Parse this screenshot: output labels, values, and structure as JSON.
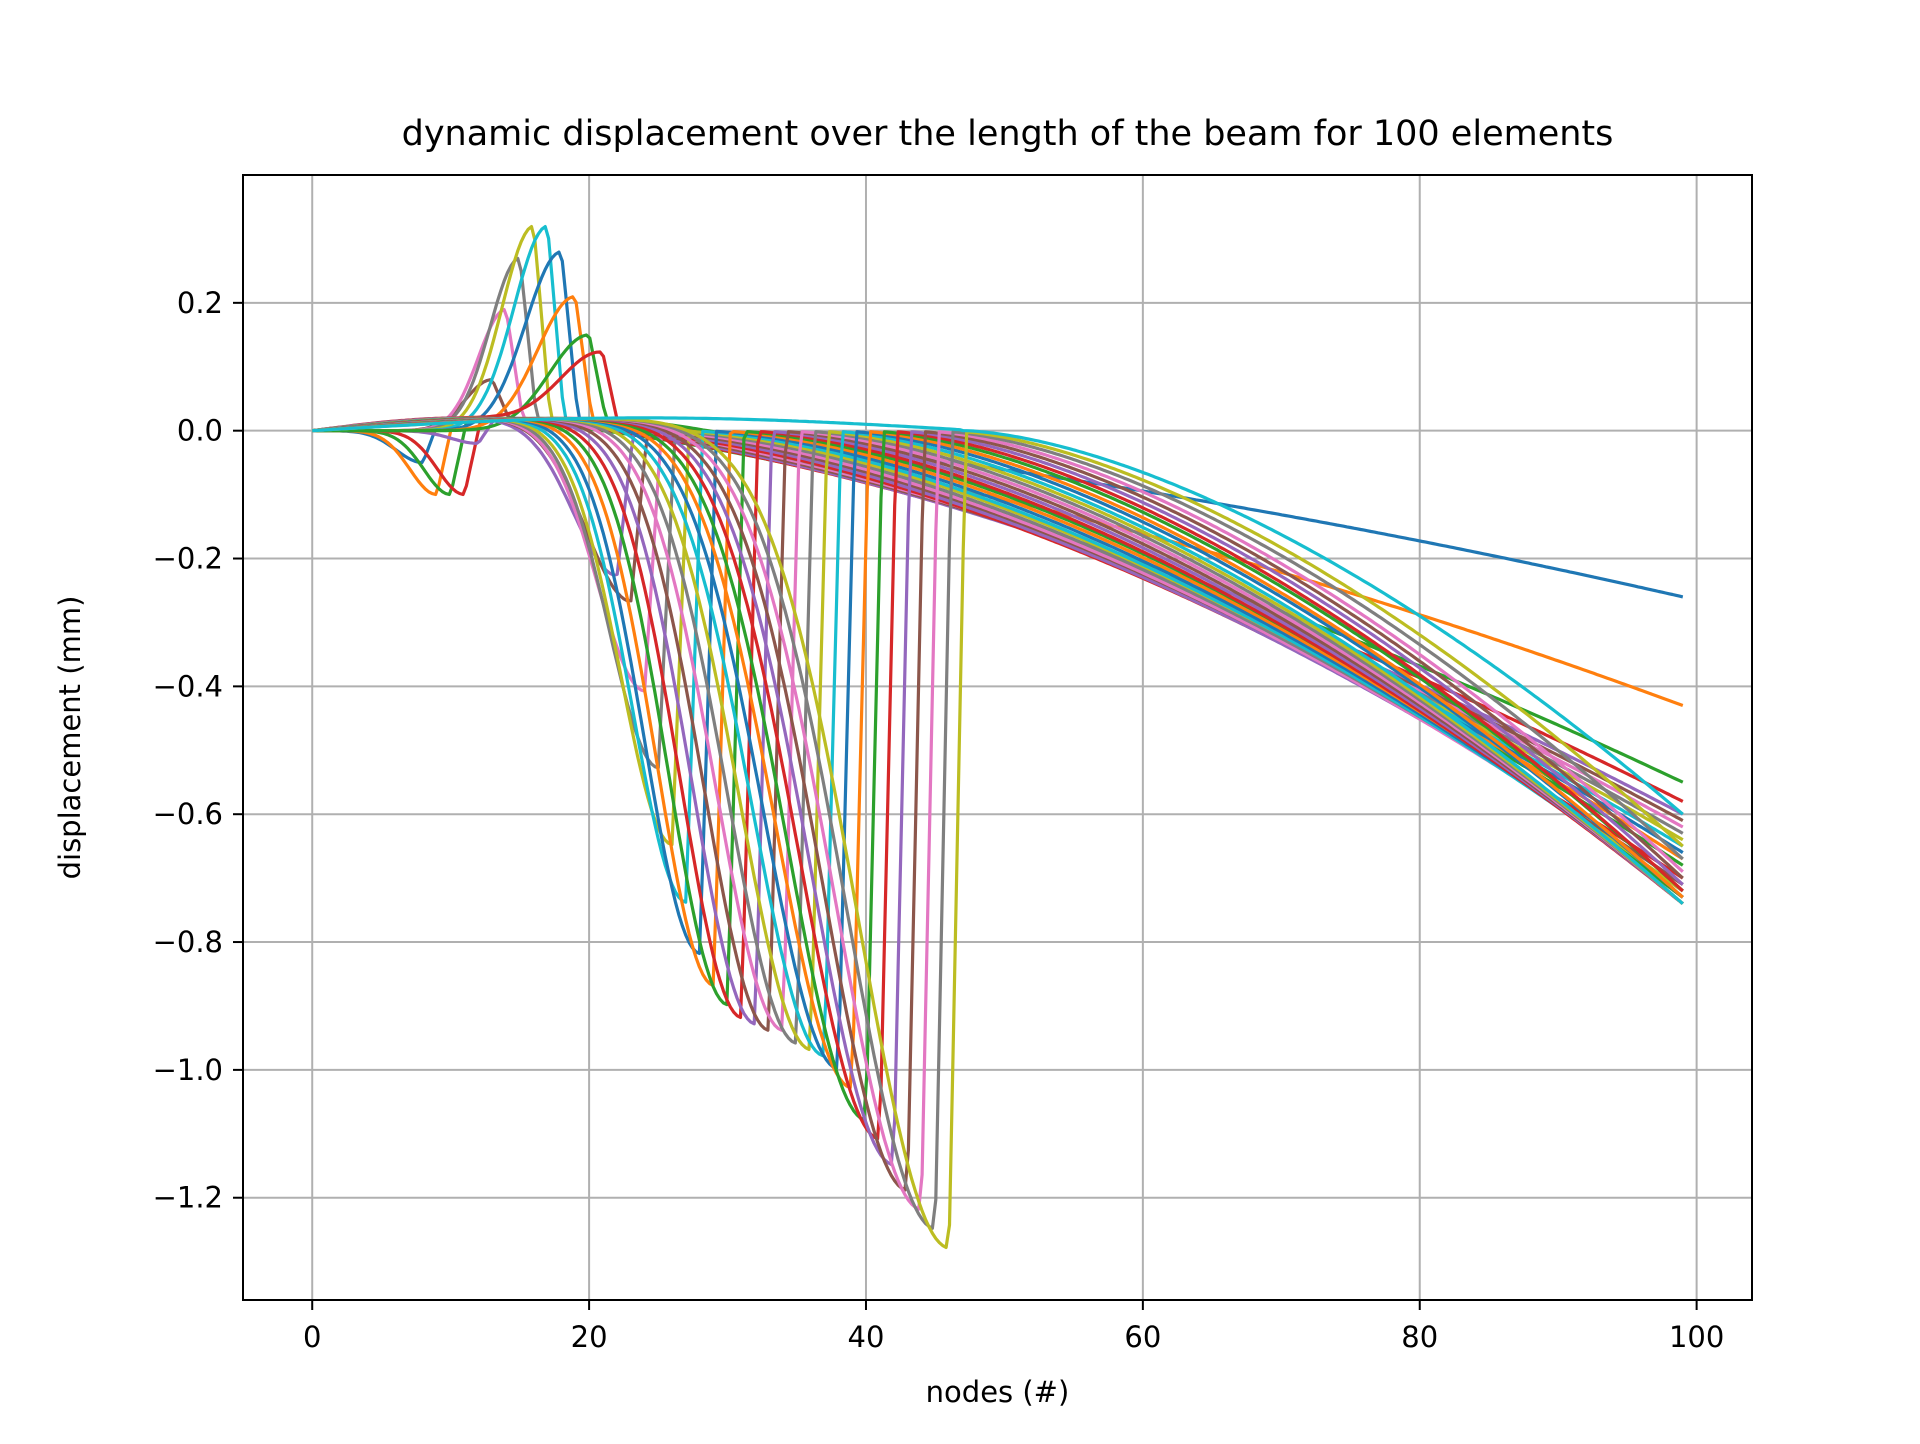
{
  "chart_data": {
    "type": "line",
    "title": "dynamic displacement over the length of the beam  for 100 elements",
    "xlabel": "nodes (#)",
    "ylabel": "displacement (mm)",
    "xlim": [
      -5,
      104
    ],
    "ylim": [
      -1.36,
      0.4
    ],
    "x_ticks": [
      0,
      20,
      40,
      60,
      80,
      100
    ],
    "y_ticks": [
      0.2,
      0.0,
      -0.2,
      -0.4,
      -0.6,
      -0.8,
      -1.0,
      -1.2
    ],
    "x_tick_labels": [
      "0",
      "20",
      "40",
      "60",
      "80",
      "100"
    ],
    "y_tick_labels": [
      "0.2",
      "0.0",
      "−0.2",
      "−0.4",
      "−0.6",
      "−0.8",
      "−1.0",
      "−1.2"
    ],
    "grid": true,
    "legend": "none",
    "colors": [
      "#1f77b4",
      "#ff7f0e",
      "#2ca02c",
      "#d62728",
      "#9467bd",
      "#8c564b",
      "#e377c2",
      "#7f7f7f",
      "#bcbd22",
      "#17becf"
    ],
    "x_range": [
      0,
      99
    ],
    "series_note_values": {
      "load_positions": [
        8,
        9,
        10,
        11,
        12,
        13,
        14,
        15,
        16,
        17,
        18,
        19,
        20,
        21,
        22,
        23,
        24,
        25,
        26,
        27,
        28,
        29,
        30,
        31,
        32,
        33,
        34,
        35,
        36,
        37,
        38,
        39,
        40,
        41,
        42,
        43,
        44,
        45,
        46,
        47
      ],
      "peak_values": [
        -0.05,
        -0.1,
        -0.1,
        -0.1,
        -0.02,
        0.08,
        0.19,
        0.27,
        0.32,
        0.32,
        0.28,
        0.21,
        0.15,
        0.12,
        -0.23,
        -0.27,
        -0.41,
        -0.53,
        -0.65,
        -0.74,
        -0.82,
        -0.87,
        -0.9,
        -0.92,
        -0.93,
        -0.94,
        -0.94,
        -0.96,
        -0.97,
        -0.98,
        -1.0,
        -1.03,
        -1.08,
        -1.11,
        -1.15,
        -1.19,
        -1.22,
        -1.25,
        -1.28,
        0.0
      ],
      "end_values": [
        -0.28,
        -0.45,
        -0.57,
        -0.6,
        -0.62,
        -0.63,
        -0.64,
        -0.65,
        -0.66,
        -0.67,
        -0.68,
        -0.69,
        -0.7,
        -0.7,
        -0.71,
        -0.71,
        -0.72,
        -0.72,
        -0.72,
        -0.73,
        -0.73,
        -0.73,
        -0.73,
        -0.74,
        -0.74,
        -0.74,
        -0.74,
        -0.74,
        -0.74,
        -0.74,
        -0.73,
        -0.73,
        -0.72,
        -0.72,
        -0.71,
        -0.7,
        -0.69,
        -0.67,
        -0.65,
        -0.6
      ]
    }
  }
}
